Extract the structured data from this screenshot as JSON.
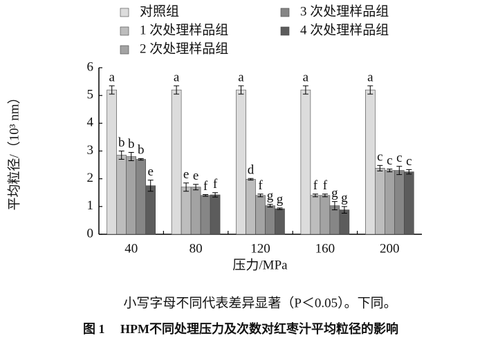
{
  "chart_data": {
    "type": "bar",
    "categories": [
      "40",
      "80",
      "120",
      "160",
      "200"
    ],
    "series": [
      {
        "name": "对照组",
        "color": "#dcdcdc",
        "values": [
          5.2,
          5.2,
          5.2,
          5.2,
          5.2
        ],
        "errors": [
          0.15,
          0.15,
          0.15,
          0.15,
          0.15
        ],
        "labels": [
          "a",
          "a",
          "a",
          "a",
          "a"
        ]
      },
      {
        "name": "1 次处理样品组",
        "color": "#bdbdbd",
        "values": [
          2.85,
          1.7,
          1.98,
          1.4,
          2.38
        ],
        "errors": [
          0.15,
          0.15,
          0.03,
          0.05,
          0.1
        ],
        "labels": [
          "b",
          "e",
          "d",
          "f",
          "c"
        ]
      },
      {
        "name": "2 次处理样品组",
        "color": "#a3a3a3",
        "values": [
          2.8,
          1.7,
          1.4,
          1.4,
          2.3
        ],
        "errors": [
          0.15,
          0.1,
          0.05,
          0.05,
          0.05
        ],
        "labels": [
          "b",
          "e",
          "f",
          "f",
          "c"
        ]
      },
      {
        "name": "3 次处理样品组",
        "color": "#868686",
        "values": [
          2.7,
          1.4,
          1.03,
          1.03,
          2.3
        ],
        "errors": [
          0.03,
          0.03,
          0.05,
          0.15,
          0.15
        ],
        "labels": [
          "b",
          "f",
          "g",
          "g",
          "c"
        ]
      },
      {
        "name": "4 次处理样品组",
        "color": "#5c5c5c",
        "values": [
          1.75,
          1.42,
          0.92,
          0.88,
          2.25
        ],
        "errors": [
          0.2,
          0.08,
          0.03,
          0.12,
          0.08
        ],
        "labels": [
          "e",
          "f",
          "g",
          "g",
          "c"
        ]
      }
    ],
    "ylabel": "平均粒径/（10³ nm）",
    "xlabel": "压力/MPa",
    "ylim": [
      0,
      6
    ],
    "yticks": [
      0,
      1,
      2,
      3,
      4,
      5,
      6
    ],
    "note": "小写字母不同代表差异显著（P＜0.05）。下同。",
    "caption": "图 1　 HPM不同处理压力及次数对红枣汁平均粒径的影响"
  }
}
